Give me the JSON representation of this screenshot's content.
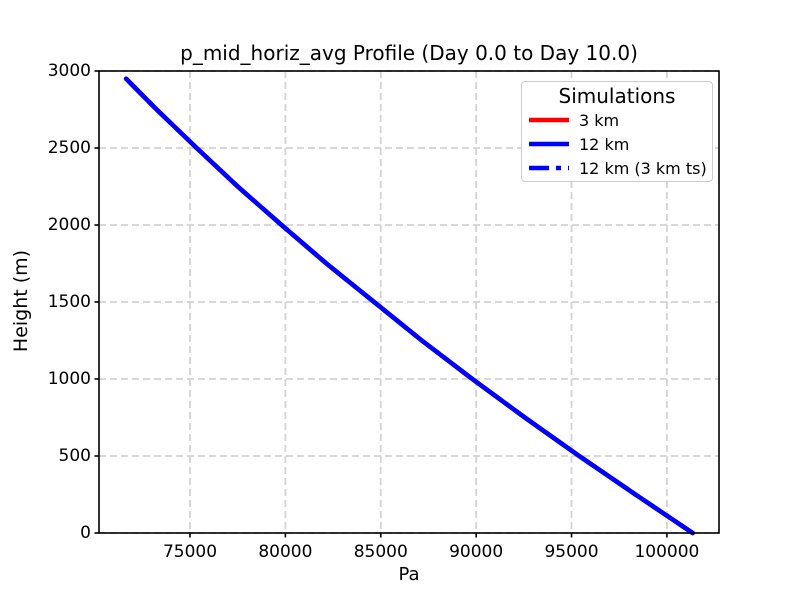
{
  "figure": {
    "background": "#ffffff"
  },
  "chart_data": {
    "type": "line",
    "title": "p_mid_horiz_avg Profile (Day 0.0 to Day 10.0)",
    "xlabel": "Pa",
    "ylabel": "Height (m)",
    "xlim": [
      70230,
      102730
    ],
    "ylim": [
      0,
      3000
    ],
    "x_ticks": [
      75000,
      80000,
      85000,
      90000,
      95000,
      100000
    ],
    "x_tick_labels": [
      "75000",
      "80000",
      "85000",
      "90000",
      "95000",
      "100000"
    ],
    "y_ticks": [
      0,
      500,
      1000,
      1500,
      2000,
      2500,
      3000
    ],
    "y_tick_labels": [
      "0",
      "500",
      "1000",
      "1500",
      "2000",
      "2500",
      "3000"
    ],
    "grid": {
      "visible": true,
      "linestyle": "dashed",
      "color": "#d3d3d3"
    },
    "axis_color": "#000000",
    "legend": {
      "title": "Simulations",
      "position": "upper right",
      "entries": [
        {
          "label": "3 km",
          "color": "#ff0000",
          "linestyle": "solid"
        },
        {
          "label": "12 km",
          "color": "#0000ff",
          "linestyle": "solid"
        },
        {
          "label": "12 km (3 km ts)",
          "color": "#0000ff",
          "linestyle": "dashdot"
        }
      ]
    },
    "series": [
      {
        "name": "3 km",
        "color": "#ff0000",
        "linestyle": "solid",
        "x": [
          101350,
          98350,
          95400,
          92550,
          89800,
          87150,
          84650,
          82150,
          79800,
          77500,
          75350,
          73250,
          71650
        ],
        "y": [
          0,
          250,
          500,
          750,
          1000,
          1250,
          1500,
          1750,
          2000,
          2250,
          2500,
          2750,
          2950
        ]
      },
      {
        "name": "12 km",
        "color": "#0000ff",
        "linestyle": "solid",
        "x": [
          101350,
          98350,
          95400,
          92550,
          89800,
          87150,
          84650,
          82150,
          79800,
          77500,
          75350,
          73250,
          71650
        ],
        "y": [
          0,
          250,
          500,
          750,
          1000,
          1250,
          1500,
          1750,
          2000,
          2250,
          2500,
          2750,
          2950
        ]
      },
      {
        "name": "12 km (3 km ts)",
        "color": "#0000ff",
        "linestyle": "dashdot",
        "x": [
          101350,
          98350,
          95400,
          92550,
          89800,
          87150,
          84650,
          82150,
          79800,
          77500,
          75350,
          73250,
          71650
        ],
        "y": [
          0,
          250,
          500,
          750,
          1000,
          1250,
          1500,
          1750,
          2000,
          2250,
          2500,
          2750,
          2950
        ]
      }
    ]
  }
}
